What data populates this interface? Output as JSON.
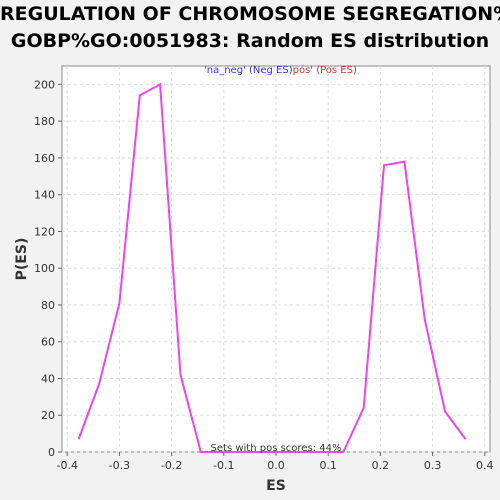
{
  "chart_data": {
    "type": "line",
    "title": "REGULATION OF CHROMOSOME SEGREGATION%",
    "subtitle": "GOBP%GO:0051983: Random ES distribution",
    "xlabel": "ES",
    "ylabel": "P(ES)",
    "xlim": [
      -0.41,
      0.41
    ],
    "ylim": [
      0,
      210
    ],
    "x_ticks": [
      "-0.4",
      "-0.3",
      "-0.2",
      "-0.1",
      "0.0",
      "0.1",
      "0.2",
      "0.3",
      "0.4"
    ],
    "x_tick_values": [
      -0.4,
      -0.3,
      -0.2,
      -0.1,
      0.0,
      0.1,
      0.2,
      0.3,
      0.4
    ],
    "y_ticks": [
      "0",
      "20",
      "40",
      "60",
      "80",
      "100",
      "120",
      "140",
      "160",
      "180",
      "200"
    ],
    "y_tick_values": [
      0,
      20,
      40,
      60,
      80,
      100,
      120,
      140,
      160,
      180,
      200
    ],
    "grid": true,
    "legend": {
      "placement": "top-center",
      "neg_label": "'na_neg' (Neg ES)",
      "pos_label": "pos' (Pos ES)",
      "neg_color": "#3333cc",
      "pos_color": "#cc3333"
    },
    "annotation": "Sets with pos scores: 44%",
    "line_color": "#ee44ee",
    "series": [
      {
        "x": [
          -0.378,
          -0.339,
          -0.3,
          -0.261,
          -0.222,
          -0.183,
          -0.144,
          -0.105,
          -0.066,
          -0.027,
          0.012,
          0.051,
          0.09,
          0.129,
          0.168,
          0.207,
          0.246,
          0.285,
          0.324,
          0.363
        ],
        "y": [
          7,
          37,
          81,
          194,
          200,
          42,
          0,
          0,
          0,
          0,
          0,
          0,
          0,
          0,
          24,
          156,
          158,
          72,
          22,
          7
        ]
      }
    ]
  }
}
